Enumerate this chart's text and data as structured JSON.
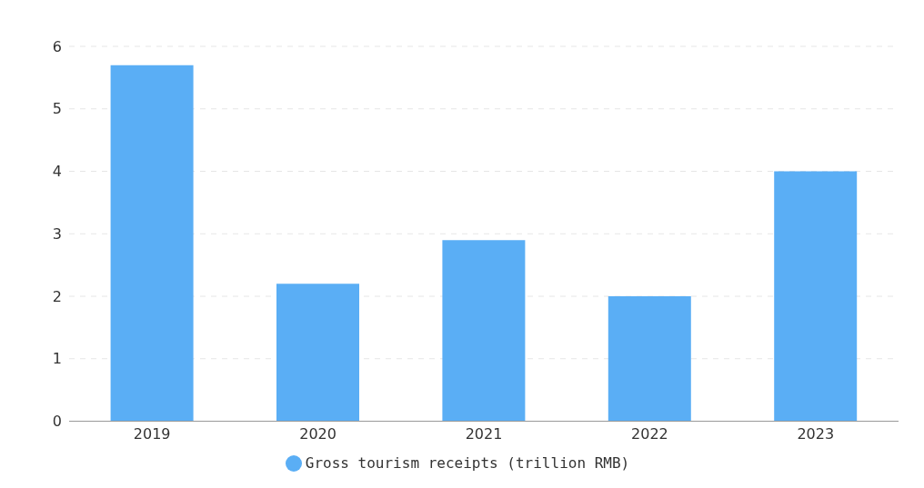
{
  "chart_data": {
    "type": "bar",
    "categories": [
      "2019",
      "2020",
      "2021",
      "2022",
      "2023"
    ],
    "series": [
      {
        "name": "Gross tourism receipts (trillion RMB)",
        "color": "#5aaef5",
        "values": [
          5.7,
          2.2,
          2.9,
          2.0,
          4.0
        ]
      }
    ],
    "ylim": [
      0,
      6
    ],
    "yticks": [
      0,
      1,
      2,
      3,
      4,
      5,
      6
    ],
    "grid": "y",
    "legend": "bottom"
  }
}
